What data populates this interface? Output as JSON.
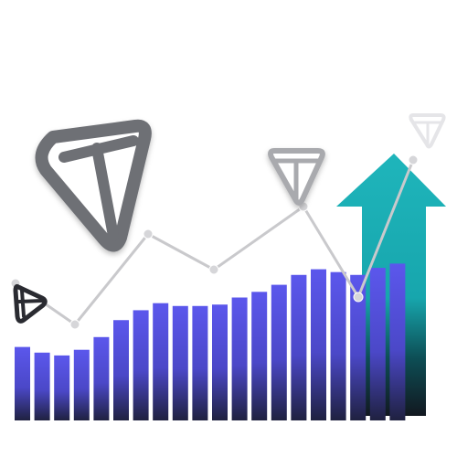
{
  "illustration": {
    "bar_levels": [
      0.52,
      0.48,
      0.46,
      0.5,
      0.59,
      0.71,
      0.78,
      0.83,
      0.81,
      0.81,
      0.82,
      0.87,
      0.91,
      0.96,
      1.03,
      1.07,
      1.05,
      1.03,
      1.08,
      1.11
    ],
    "trend_levels": [
      0.3,
      0.15,
      0.48,
      0.35,
      0.58,
      0.25,
      0.75
    ],
    "colors": {
      "bar_top": "#5b57ec",
      "bar_bottom": "#1f2140",
      "line": "#c9c9cc",
      "node": "#d6d6d9",
      "arrow_top": "#1fb1b7",
      "arrow_bottom": "#13191f",
      "icon_large": "#6e6f75",
      "icon_small_dark": "#2a2b31",
      "icon_mid": "#a9aaae",
      "icon_top": "#e5e5e8"
    }
  }
}
